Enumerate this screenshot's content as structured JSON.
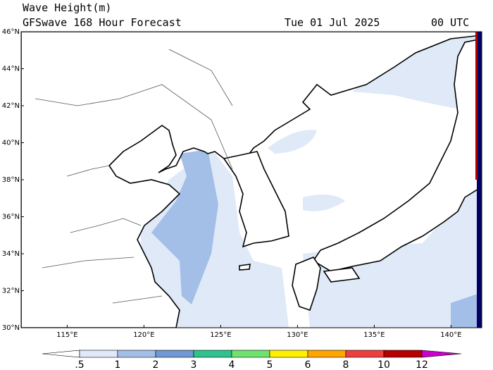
{
  "header": {
    "title": "Wave Height(m)",
    "subtitle": "GFSwave 168 Hour Forecast",
    "date": "Tue 01 Jul 2025",
    "time": "00 UTC"
  },
  "lat_labels": [
    "46°N",
    "44°N",
    "42°N",
    "40°N",
    "38°N",
    "36°N",
    "34°N",
    "32°N",
    "30°N"
  ],
  "lon_labels": [
    "115°E",
    "120°E",
    "125°E",
    "130°E",
    "135°E",
    "140°E"
  ],
  "colorbar": {
    "labels": [
      ".5",
      "1",
      "2",
      "3",
      "4",
      "5",
      "6",
      "8",
      "10",
      "12"
    ],
    "colors": [
      "#ffffff",
      "#dfe9f7",
      "#a3bfe8",
      "#6f98d4",
      "#2fc28e",
      "#6fe26f",
      "#fff000",
      "#ffa500",
      "#ec4040",
      "#b40000",
      "#cc00cc"
    ]
  }
}
